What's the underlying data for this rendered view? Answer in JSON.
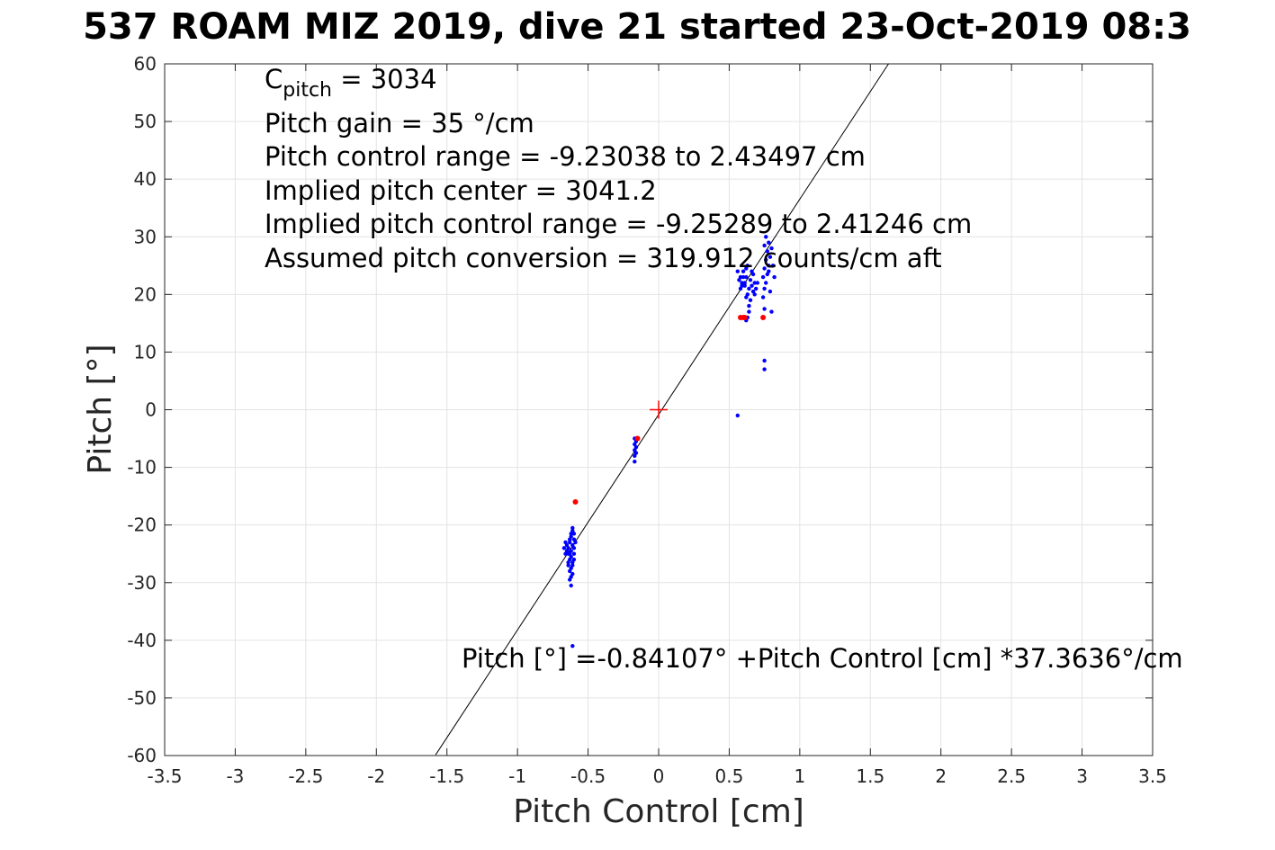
{
  "chart_data": {
    "type": "scatter",
    "title": "537 ROAM MIZ 2019, dive 21 started 23-Oct-2019 08:3",
    "xlabel": "Pitch Control [cm]",
    "ylabel": "Pitch [°]",
    "xlim": [
      -3.5,
      3.5
    ],
    "ylim": [
      -60,
      60
    ],
    "x_ticks": [
      -3.5,
      -3,
      -2.5,
      -2,
      -1.5,
      -1,
      -0.5,
      0,
      0.5,
      1,
      1.5,
      2,
      2.5,
      3,
      3.5
    ],
    "x_tick_labels": [
      "-3.5",
      "-3",
      "-2.5",
      "-2",
      "-1.5",
      "-1",
      "-0.5",
      "0",
      "0.5",
      "1",
      "1.5",
      "2",
      "2.5",
      "3",
      "3.5"
    ],
    "y_ticks": [
      -60,
      -50,
      -40,
      -30,
      -20,
      -10,
      0,
      10,
      20,
      30,
      40,
      50,
      60
    ],
    "y_tick_labels": [
      "-60",
      "-50",
      "-40",
      "-30",
      "-20",
      "-10",
      "0",
      "10",
      "20",
      "30",
      "40",
      "50",
      "60"
    ],
    "grid": true,
    "fit_line": {
      "intercept": -0.84107,
      "slope": 37.3636,
      "x_range": [
        -1.58,
        1.63
      ],
      "color": "#000000"
    },
    "center_marker": {
      "x": 0,
      "y": 0,
      "color": "#ff0000",
      "shape": "plus"
    },
    "series": [
      {
        "color": "#0000ff",
        "points": [
          [
            -0.62,
            -22.0
          ],
          [
            -0.63,
            -23.0
          ],
          [
            -0.64,
            -24.0
          ],
          [
            -0.65,
            -24.5
          ],
          [
            -0.66,
            -25.0
          ],
          [
            -0.67,
            -24.0
          ],
          [
            -0.62,
            -25.5
          ],
          [
            -0.63,
            -26.0
          ],
          [
            -0.64,
            -26.5
          ],
          [
            -0.61,
            -27.0
          ],
          [
            -0.62,
            -27.5
          ],
          [
            -0.63,
            -28.0
          ],
          [
            -0.61,
            -28.5
          ],
          [
            -0.6,
            -26.0
          ],
          [
            -0.6,
            -24.0
          ],
          [
            -0.61,
            -23.5
          ],
          [
            -0.62,
            -21.5
          ],
          [
            -0.61,
            -21.0
          ],
          [
            -0.63,
            -22.5
          ],
          [
            -0.64,
            -25.0
          ],
          [
            -0.65,
            -23.5
          ],
          [
            -0.6,
            -22.5
          ],
          [
            -0.6,
            -25.0
          ],
          [
            -0.61,
            -26.5
          ],
          [
            -0.62,
            -24.5
          ],
          [
            -0.63,
            -25.0
          ],
          [
            -0.64,
            -27.0
          ],
          [
            -0.62,
            -29.0
          ],
          [
            -0.63,
            -29.5
          ],
          [
            -0.62,
            -30.5
          ],
          [
            -0.61,
            -20.5
          ],
          [
            -0.6,
            -21.5
          ],
          [
            -0.61,
            -41.0
          ],
          [
            -0.59,
            -23.0
          ],
          [
            -0.66,
            -23.0
          ],
          [
            -0.17,
            -5.0
          ],
          [
            -0.17,
            -6.0
          ],
          [
            -0.16,
            -6.5
          ],
          [
            -0.17,
            -7.0
          ],
          [
            -0.16,
            -5.5
          ],
          [
            -0.17,
            -8.0
          ],
          [
            -0.17,
            -9.0
          ],
          [
            -0.16,
            -7.5
          ],
          [
            0.56,
            24.0
          ],
          [
            0.57,
            22.5
          ],
          [
            0.58,
            23.0
          ],
          [
            0.59,
            21.5
          ],
          [
            0.6,
            24.0
          ],
          [
            0.61,
            22.0
          ],
          [
            0.62,
            23.0
          ],
          [
            0.63,
            25.0
          ],
          [
            0.64,
            21.0
          ],
          [
            0.65,
            22.5
          ],
          [
            0.66,
            24.0
          ],
          [
            0.67,
            20.5
          ],
          [
            0.68,
            22.0
          ],
          [
            0.62,
            19.5
          ],
          [
            0.63,
            20.0
          ],
          [
            0.64,
            18.0
          ],
          [
            0.65,
            19.0
          ],
          [
            0.61,
            21.5
          ],
          [
            0.62,
            24.5
          ],
          [
            0.6,
            23.0
          ],
          [
            0.59,
            22.0
          ],
          [
            0.58,
            21.0
          ],
          [
            0.66,
            21.5
          ],
          [
            0.67,
            23.5
          ],
          [
            0.68,
            20.0
          ],
          [
            0.69,
            21.0
          ],
          [
            0.7,
            22.0
          ],
          [
            0.63,
            16.0
          ],
          [
            0.62,
            15.5
          ],
          [
            0.64,
            17.0
          ],
          [
            0.74,
            23.0
          ],
          [
            0.75,
            24.5
          ],
          [
            0.76,
            26.0
          ],
          [
            0.77,
            27.5
          ],
          [
            0.78,
            25.0
          ],
          [
            0.75,
            28.5
          ],
          [
            0.76,
            30.0
          ],
          [
            0.78,
            24.0
          ],
          [
            0.79,
            26.5
          ],
          [
            0.8,
            28.0
          ],
          [
            0.81,
            25.0
          ],
          [
            0.82,
            23.0
          ],
          [
            0.75,
            21.0
          ],
          [
            0.76,
            22.0
          ],
          [
            0.79,
            20.5
          ],
          [
            0.74,
            19.5
          ],
          [
            0.75,
            17.5
          ],
          [
            0.77,
            23.5
          ],
          [
            0.78,
            29.0
          ],
          [
            0.8,
            17.0
          ],
          [
            0.75,
            8.5
          ],
          [
            0.75,
            7.0
          ],
          [
            0.56,
            -1.0
          ]
        ]
      },
      {
        "color": "#ff0000",
        "points": [
          [
            -0.59,
            -16.0
          ],
          [
            -0.15,
            -5.0
          ],
          [
            0.58,
            16.0
          ],
          [
            0.6,
            16.0
          ],
          [
            0.61,
            16.0
          ],
          [
            0.74,
            16.0
          ]
        ]
      }
    ],
    "annotations": {
      "c_pitch_base": "C",
      "c_pitch_sub": "pitch",
      "c_pitch_rest": " = 3034",
      "lines": [
        "Pitch gain = 35 °/cm",
        "Pitch control range = -9.23038 to 2.43497 cm",
        "Implied pitch center = 3041.2",
        "Implied pitch control range = -9.25289 to 2.41246 cm",
        "Assumed pitch conversion = 319.912 counts/cm aft"
      ],
      "fit_equation": "Pitch [°] =-0.84107° +Pitch Control [cm] *37.3636°/cm"
    }
  }
}
